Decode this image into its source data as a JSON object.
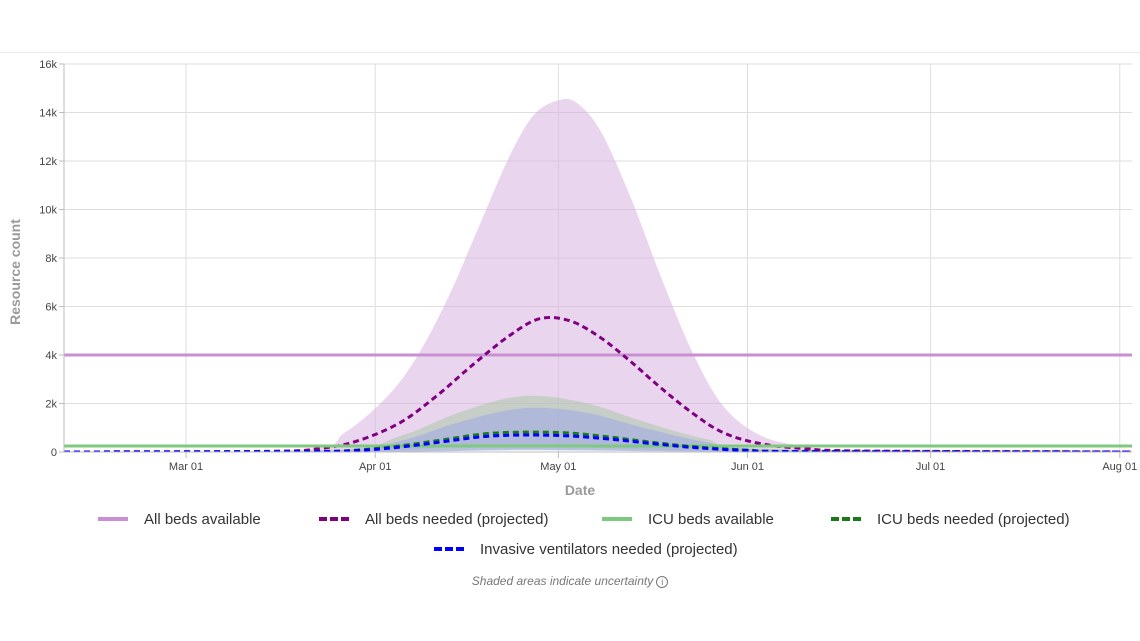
{
  "chart_data": {
    "type": "line",
    "xlabel": "Date",
    "ylabel": "Resource count",
    "x_range": [
      "2020-02-10",
      "2020-08-03"
    ],
    "ylim": [
      0,
      16000
    ],
    "x_ticks": [
      {
        "date": "2020-03-01",
        "label": "Mar 01"
      },
      {
        "date": "2020-04-01",
        "label": "Apr 01"
      },
      {
        "date": "2020-05-01",
        "label": "May 01"
      },
      {
        "date": "2020-06-01",
        "label": "Jun 01"
      },
      {
        "date": "2020-07-01",
        "label": "Jul 01"
      },
      {
        "date": "2020-08-01",
        "label": "Aug 01"
      }
    ],
    "y_ticks": [
      {
        "value": 0,
        "label": "0"
      },
      {
        "value": 2000,
        "label": "2k"
      },
      {
        "value": 4000,
        "label": "4k"
      },
      {
        "value": 6000,
        "label": "6k"
      },
      {
        "value": 8000,
        "label": "8k"
      },
      {
        "value": 10000,
        "label": "10k"
      },
      {
        "value": 12000,
        "label": "12k"
      },
      {
        "value": 14000,
        "label": "14k"
      },
      {
        "value": 16000,
        "label": "16k"
      }
    ],
    "grid": true,
    "legend_position": "bottom",
    "series": [
      {
        "name": "All beds available",
        "style": "solid",
        "color": "#c88fd2",
        "x": [
          "2020-02-10",
          "2020-08-03"
        ],
        "y": [
          4000,
          4000
        ]
      },
      {
        "name": "All beds needed (projected)",
        "style": "dashed",
        "color": "#800080",
        "x": [
          "2020-02-10",
          "2020-03-15",
          "2020-03-23",
          "2020-03-29",
          "2020-04-05",
          "2020-04-11",
          "2020-04-17",
          "2020-04-23",
          "2020-04-28",
          "2020-05-03",
          "2020-05-08",
          "2020-05-13",
          "2020-05-18",
          "2020-05-23",
          "2020-05-28",
          "2020-06-03",
          "2020-06-10",
          "2020-06-20",
          "2020-08-03"
        ],
        "y": [
          0,
          30,
          150,
          450,
          1200,
          2300,
          3600,
          4800,
          5500,
          5400,
          4700,
          3700,
          2600,
          1600,
          800,
          350,
          150,
          40,
          0
        ]
      },
      {
        "name": "ICU beds available",
        "style": "solid",
        "color": "#7fc97f",
        "x": [
          "2020-02-10",
          "2020-08-03"
        ],
        "y": [
          250,
          250
        ]
      },
      {
        "name": "ICU beds needed (projected)",
        "style": "dashed",
        "color": "#1a7a1a",
        "x": [
          "2020-02-10",
          "2020-03-20",
          "2020-03-29",
          "2020-04-05",
          "2020-04-12",
          "2020-04-19",
          "2020-04-26",
          "2020-05-03",
          "2020-05-10",
          "2020-05-17",
          "2020-05-24",
          "2020-06-01",
          "2020-06-10",
          "2020-08-03"
        ],
        "y": [
          0,
          20,
          80,
          250,
          500,
          750,
          820,
          780,
          600,
          380,
          200,
          80,
          20,
          0
        ]
      },
      {
        "name": "Invasive ventilators needed (projected)",
        "style": "dashed",
        "color": "#0000ff",
        "x": [
          "2020-02-10",
          "2020-03-20",
          "2020-03-29",
          "2020-04-05",
          "2020-04-12",
          "2020-04-19",
          "2020-04-26",
          "2020-05-03",
          "2020-05-10",
          "2020-05-17",
          "2020-05-24",
          "2020-06-01",
          "2020-06-10",
          "2020-08-03"
        ],
        "y": [
          0,
          15,
          60,
          200,
          420,
          640,
          700,
          660,
          520,
          330,
          170,
          60,
          15,
          0
        ]
      }
    ],
    "uncertainty_bands": [
      {
        "series": "All beds needed (projected)",
        "color": "#d9b3e0",
        "x": [
          "2020-02-10",
          "2020-03-20",
          "2020-03-27",
          "2020-04-03",
          "2020-04-08",
          "2020-04-13",
          "2020-04-18",
          "2020-04-23",
          "2020-04-27",
          "2020-05-01",
          "2020-05-04",
          "2020-05-08",
          "2020-05-13",
          "2020-05-18",
          "2020-05-23",
          "2020-05-28",
          "2020-06-03",
          "2020-06-10",
          "2020-06-20",
          "2020-08-03"
        ],
        "upper": [
          0,
          100,
          800,
          2300,
          4000,
          6400,
          9300,
          12200,
          13900,
          14500,
          14400,
          13200,
          10400,
          7100,
          4100,
          1900,
          700,
          250,
          60,
          0
        ],
        "lower": [
          0,
          0,
          0,
          40,
          120,
          200,
          260,
          280,
          260,
          230,
          200,
          170,
          120,
          80,
          40,
          15,
          5,
          0,
          0,
          0
        ]
      },
      {
        "series": "ICU beds needed (projected)",
        "color": "#a9c8a9",
        "x": [
          "2020-02-10",
          "2020-03-25",
          "2020-04-05",
          "2020-04-15",
          "2020-04-25",
          "2020-05-05",
          "2020-05-15",
          "2020-05-25",
          "2020-06-05",
          "2020-08-03"
        ],
        "upper": [
          0,
          80,
          650,
          1650,
          2300,
          2050,
          1250,
          550,
          120,
          0
        ],
        "lower": [
          0,
          0,
          20,
          60,
          100,
          80,
          50,
          20,
          0,
          0
        ]
      },
      {
        "series": "Invasive ventilators needed (projected)",
        "color": "#9fa8e8",
        "x": [
          "2020-02-10",
          "2020-03-25",
          "2020-04-05",
          "2020-04-15",
          "2020-04-25",
          "2020-05-05",
          "2020-05-15",
          "2020-05-25",
          "2020-06-05",
          "2020-08-03"
        ],
        "upper": [
          0,
          60,
          450,
          1250,
          1800,
          1650,
          1000,
          420,
          90,
          0
        ],
        "lower": [
          0,
          0,
          10,
          40,
          70,
          60,
          35,
          15,
          0,
          0
        ]
      }
    ],
    "note": "Shaded areas indicate uncertainty"
  }
}
